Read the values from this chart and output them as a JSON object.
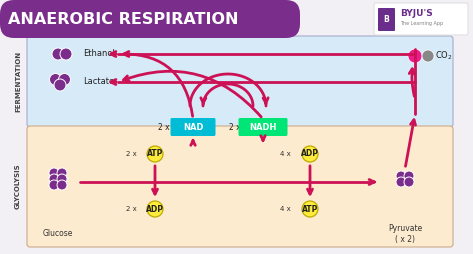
{
  "title": "ANAEROBIC RESPIRATION",
  "title_bg": "#7B2D8B",
  "title_color": "#FFFFFF",
  "bg_color": "#F2F0F5",
  "fermentation_bg": "#D6EAF8",
  "glycolysis_bg": "#FDEBD0",
  "fermentation_label": "FERMENTATION",
  "glycolysis_label": "GLYCOLYSIS",
  "arrow_color": "#CC1155",
  "nad_bg": "#00BCD4",
  "nadh_bg": "#00E676",
  "atp_adp_bg": "#FFEB3B",
  "atp_adp_edge": "#BBAA00",
  "molecule_color": "#7B2D8B",
  "co2_pink": "#E91E8C",
  "co2_gray": "#888888",
  "byju_purple": "#6B2D8B"
}
